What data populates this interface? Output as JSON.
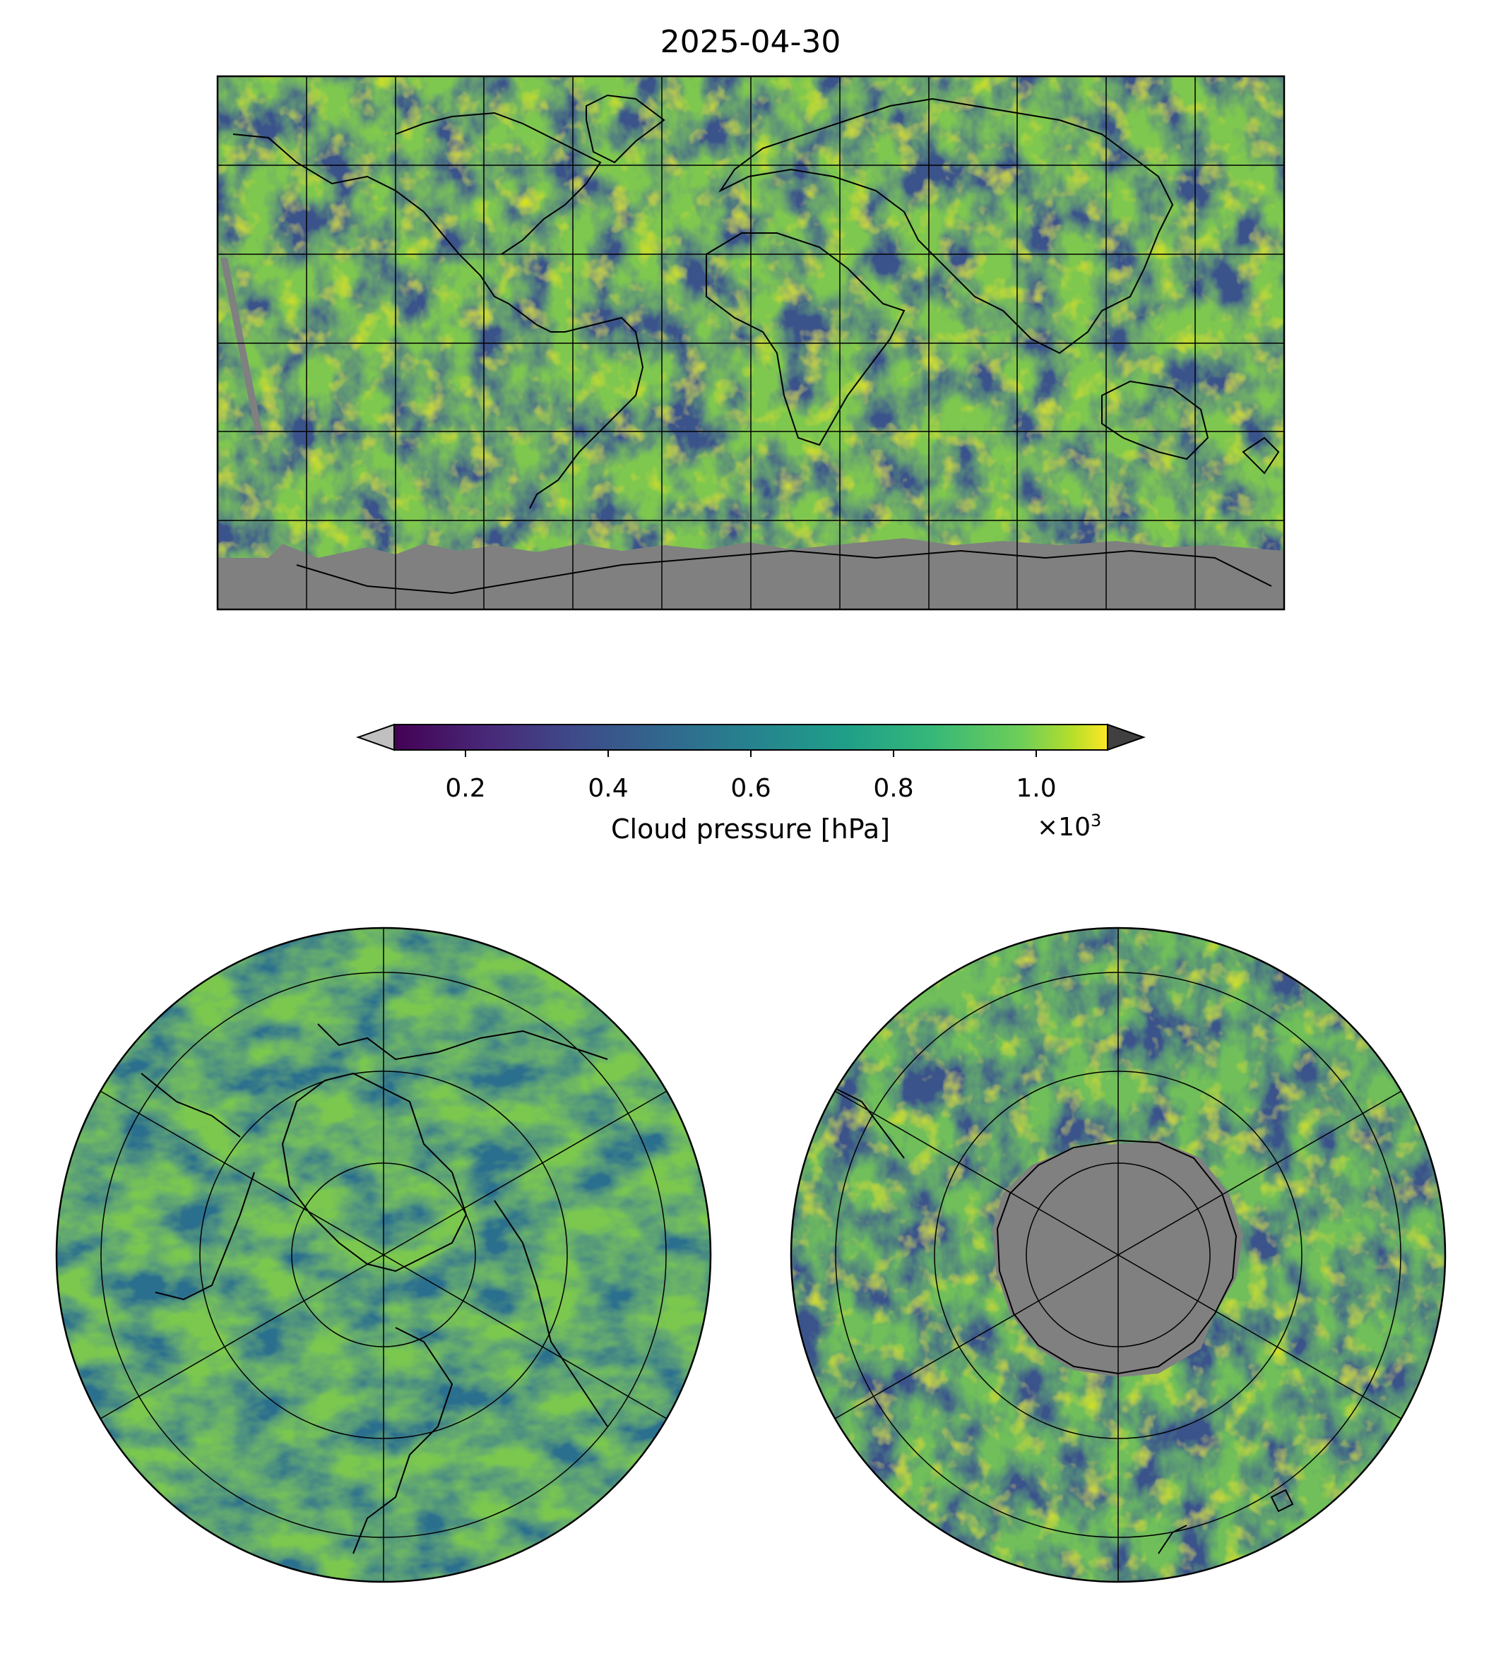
{
  "title": "2025-04-30",
  "colorbar": {
    "label": "Cloud pressure [hPa]",
    "ticks": [
      "0.2",
      "0.4",
      "0.6",
      "0.8",
      "1.0"
    ],
    "tick_values": [
      0.2,
      0.4,
      0.6,
      0.8,
      1.0
    ],
    "range": [
      0.1,
      1.1
    ],
    "multiplier_base": "×10",
    "multiplier_exp": "3",
    "colormap": "viridis",
    "under_color": "#c0c0c0",
    "over_color": "#404040"
  },
  "maps": {
    "global": {
      "projection": "PlateCarree",
      "gridlines": true
    },
    "north_polar": {
      "projection": "NorthPolarStereo",
      "gridlines": true
    },
    "south_polar": {
      "projection": "SouthPolarStereo",
      "gridlines": true
    }
  },
  "colors": {
    "missing": "#808080",
    "coastline": "#000000"
  }
}
